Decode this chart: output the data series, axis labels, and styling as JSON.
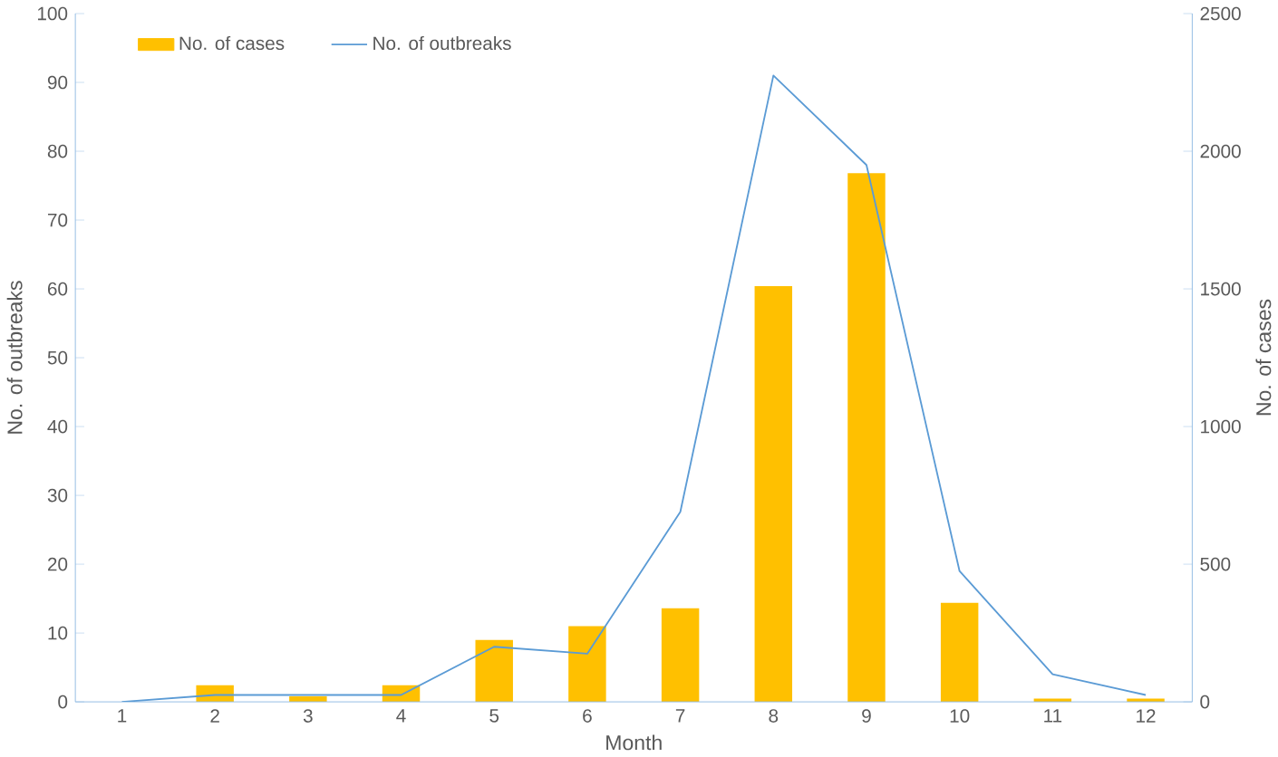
{
  "chart_data": {
    "type": "bar",
    "xlabel": "Month",
    "ylabel": "No. of outbreaks",
    "y2label": "No. of cases",
    "categories": [
      "1",
      "2",
      "3",
      "4",
      "5",
      "6",
      "7",
      "8",
      "9",
      "10",
      "11",
      "12"
    ],
    "series": [
      {
        "name": "No. of cases",
        "axis": "y2",
        "color": "#ffc000",
        "values": [
          0,
          60,
          20,
          60,
          225,
          275,
          340,
          1510,
          1920,
          360,
          12,
          12
        ]
      },
      {
        "name": "No. of outbreaks",
        "type": "line",
        "color": "#5b9bd5",
        "values": [
          0,
          1,
          1,
          1,
          8,
          7,
          27.6,
          91,
          78,
          19,
          4,
          1
        ]
      }
    ],
    "ylim": [
      0,
      100
    ],
    "yticks": [
      0,
      10,
      20,
      30,
      40,
      50,
      60,
      70,
      80,
      90,
      100
    ],
    "y2lim": [
      0,
      2500
    ],
    "y2ticks": [
      0,
      500,
      1000,
      1500,
      2000,
      2500
    ],
    "legend": "top left",
    "grid": false
  }
}
